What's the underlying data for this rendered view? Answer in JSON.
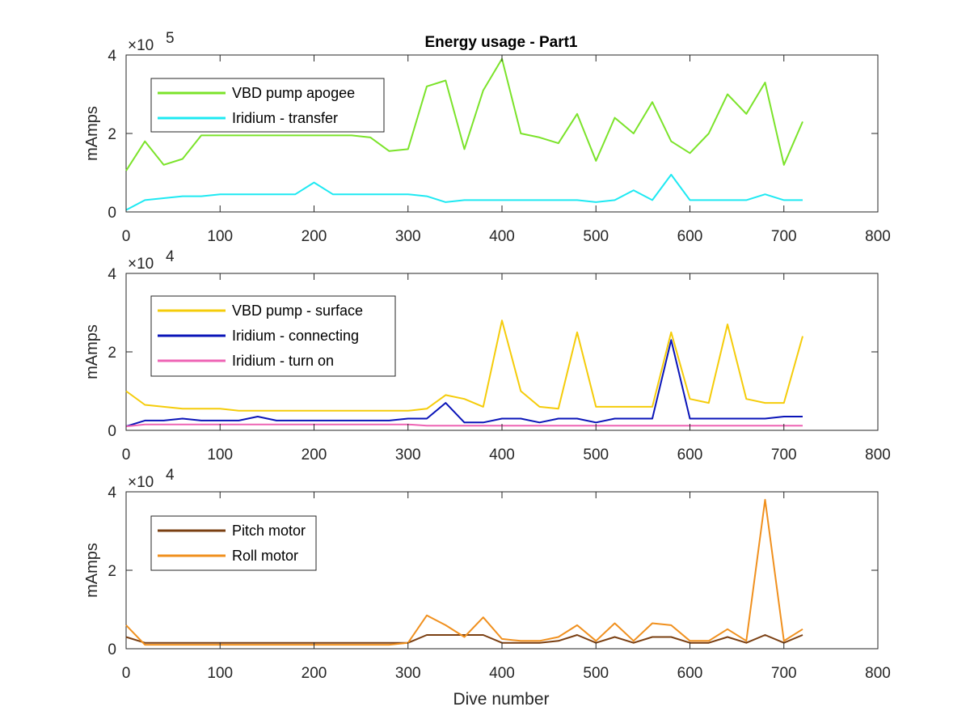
{
  "colors": {
    "axis": "#262626",
    "background": "#ffffff"
  },
  "chart_data": [
    {
      "type": "line",
      "title": "Energy usage - Part1",
      "xlabel": "",
      "ylabel": "mAmps",
      "exponent_label": "×10",
      "exponent_power": "5",
      "xlim": [
        0,
        800
      ],
      "ylim": [
        0,
        4
      ],
      "x_ticks": [
        "0",
        "100",
        "200",
        "300",
        "400",
        "500",
        "600",
        "700",
        "800"
      ],
      "y_ticks": [
        "0",
        "2",
        "4"
      ],
      "legend_position": "top-left",
      "x": [
        0,
        20,
        40,
        60,
        80,
        100,
        120,
        140,
        160,
        180,
        200,
        220,
        240,
        260,
        280,
        300,
        320,
        340,
        360,
        380,
        400,
        420,
        440,
        460,
        480,
        500,
        520,
        540,
        560,
        580,
        600,
        620,
        640,
        660,
        680,
        700,
        720
      ],
      "series": [
        {
          "name": "VBD pump apogee",
          "color": "#7be32a",
          "values": [
            1.05,
            1.8,
            1.2,
            1.35,
            1.95,
            1.95,
            1.95,
            1.95,
            1.95,
            1.95,
            1.95,
            1.95,
            1.95,
            1.9,
            1.55,
            1.6,
            3.2,
            3.35,
            1.6,
            3.1,
            3.9,
            2.0,
            1.9,
            1.75,
            2.5,
            1.3,
            2.4,
            2.0,
            2.8,
            1.8,
            1.5,
            2.0,
            3.0,
            2.5,
            3.3,
            1.2,
            2.3
          ]
        },
        {
          "name": "Iridium - transfer",
          "color": "#1ee9f2",
          "values": [
            0.05,
            0.3,
            0.35,
            0.4,
            0.4,
            0.45,
            0.45,
            0.45,
            0.45,
            0.45,
            0.75,
            0.45,
            0.45,
            0.45,
            0.45,
            0.45,
            0.4,
            0.25,
            0.3,
            0.3,
            0.3,
            0.3,
            0.3,
            0.3,
            0.3,
            0.25,
            0.3,
            0.55,
            0.3,
            0.95,
            0.3,
            0.3,
            0.3,
            0.3,
            0.45,
            0.3,
            0.3
          ]
        }
      ]
    },
    {
      "type": "line",
      "title": "",
      "xlabel": "",
      "ylabel": "mAmps",
      "exponent_label": "×10",
      "exponent_power": "4",
      "xlim": [
        0,
        800
      ],
      "ylim": [
        0,
        4
      ],
      "x_ticks": [
        "0",
        "100",
        "200",
        "300",
        "400",
        "500",
        "600",
        "700",
        "800"
      ],
      "y_ticks": [
        "0",
        "2",
        "4"
      ],
      "legend_position": "top-left",
      "x": [
        0,
        20,
        40,
        60,
        80,
        100,
        120,
        140,
        160,
        180,
        200,
        220,
        240,
        260,
        280,
        300,
        320,
        340,
        360,
        380,
        400,
        420,
        440,
        460,
        480,
        500,
        520,
        540,
        560,
        580,
        600,
        620,
        640,
        660,
        680,
        700,
        720
      ],
      "series": [
        {
          "name": "VBD pump - surface",
          "color": "#f5cc0a",
          "values": [
            1.0,
            0.65,
            0.6,
            0.55,
            0.55,
            0.55,
            0.5,
            0.5,
            0.5,
            0.5,
            0.5,
            0.5,
            0.5,
            0.5,
            0.5,
            0.5,
            0.55,
            0.9,
            0.8,
            0.6,
            2.8,
            1.0,
            0.6,
            0.55,
            2.5,
            0.6,
            0.6,
            0.6,
            0.6,
            2.5,
            0.8,
            0.7,
            2.7,
            0.8,
            0.7,
            0.7,
            2.4
          ]
        },
        {
          "name": "Iridium - connecting",
          "color": "#0a14b8",
          "values": [
            0.1,
            0.25,
            0.25,
            0.3,
            0.25,
            0.25,
            0.25,
            0.35,
            0.25,
            0.25,
            0.25,
            0.25,
            0.25,
            0.25,
            0.25,
            0.3,
            0.3,
            0.7,
            0.2,
            0.2,
            0.3,
            0.3,
            0.2,
            0.3,
            0.3,
            0.2,
            0.3,
            0.3,
            0.3,
            2.3,
            0.3,
            0.3,
            0.3,
            0.3,
            0.3,
            0.35,
            0.35
          ]
        },
        {
          "name": "Iridium - turn on",
          "color": "#ee64b4",
          "values": [
            0.1,
            0.15,
            0.15,
            0.15,
            0.15,
            0.15,
            0.15,
            0.15,
            0.15,
            0.15,
            0.15,
            0.15,
            0.15,
            0.15,
            0.15,
            0.15,
            0.12,
            0.12,
            0.12,
            0.12,
            0.12,
            0.12,
            0.12,
            0.12,
            0.12,
            0.12,
            0.12,
            0.12,
            0.12,
            0.12,
            0.12,
            0.12,
            0.12,
            0.12,
            0.12,
            0.12,
            0.12
          ]
        }
      ]
    },
    {
      "type": "line",
      "title": "",
      "xlabel": "Dive number",
      "ylabel": "mAmps",
      "exponent_label": "×10",
      "exponent_power": "4",
      "xlim": [
        0,
        800
      ],
      "ylim": [
        0,
        4
      ],
      "x_ticks": [
        "0",
        "100",
        "200",
        "300",
        "400",
        "500",
        "600",
        "700",
        "800"
      ],
      "y_ticks": [
        "0",
        "2",
        "4"
      ],
      "legend_position": "top-left",
      "x": [
        0,
        20,
        40,
        60,
        80,
        100,
        120,
        140,
        160,
        180,
        200,
        220,
        240,
        260,
        280,
        300,
        320,
        340,
        360,
        380,
        400,
        420,
        440,
        460,
        480,
        500,
        520,
        540,
        560,
        580,
        600,
        620,
        640,
        660,
        680,
        700,
        720
      ],
      "series": [
        {
          "name": "Pitch motor",
          "color": "#7a3f12",
          "values": [
            0.3,
            0.15,
            0.15,
            0.15,
            0.15,
            0.15,
            0.15,
            0.15,
            0.15,
            0.15,
            0.15,
            0.15,
            0.15,
            0.15,
            0.15,
            0.15,
            0.35,
            0.35,
            0.35,
            0.35,
            0.15,
            0.15,
            0.15,
            0.2,
            0.35,
            0.15,
            0.3,
            0.15,
            0.3,
            0.3,
            0.15,
            0.15,
            0.3,
            0.15,
            0.35,
            0.15,
            0.35
          ]
        },
        {
          "name": "Roll motor",
          "color": "#f0901e",
          "values": [
            0.6,
            0.1,
            0.1,
            0.1,
            0.1,
            0.1,
            0.1,
            0.1,
            0.1,
            0.1,
            0.1,
            0.1,
            0.1,
            0.1,
            0.1,
            0.15,
            0.85,
            0.6,
            0.3,
            0.8,
            0.25,
            0.2,
            0.2,
            0.3,
            0.6,
            0.2,
            0.65,
            0.2,
            0.65,
            0.6,
            0.2,
            0.2,
            0.5,
            0.2,
            3.8,
            0.2,
            0.5
          ]
        }
      ]
    }
  ]
}
